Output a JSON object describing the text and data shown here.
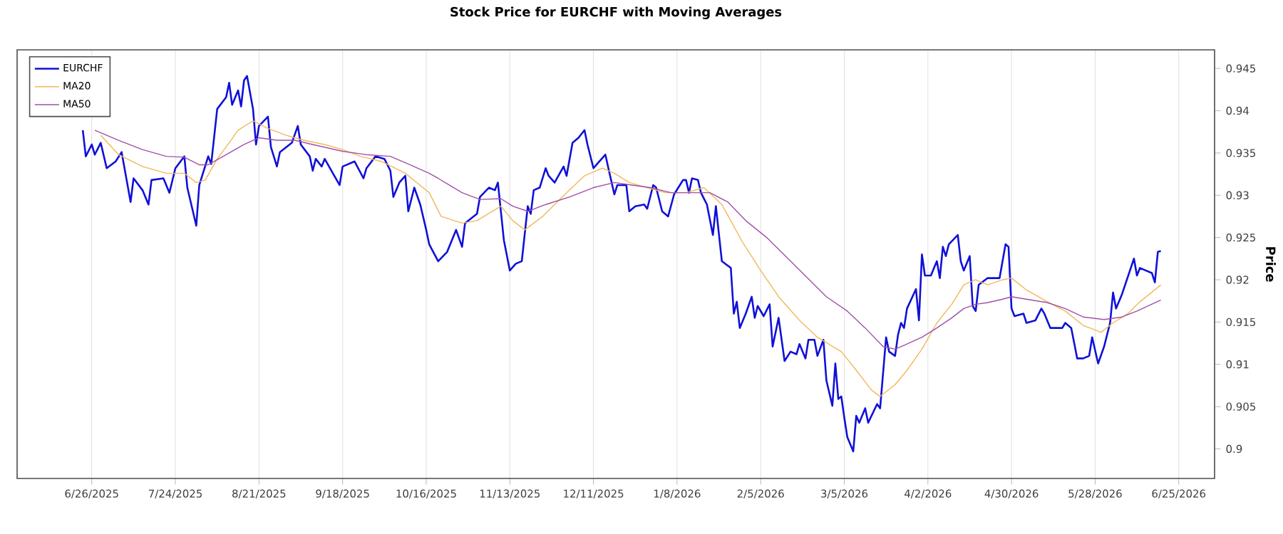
{
  "chart_data": {
    "type": "line",
    "title": "Stock Price for EURCHF with Moving Averages",
    "ylabel": "Price",
    "xlim": [
      "2025-06-01",
      "2026-07-07"
    ],
    "ylim": [
      0.8965,
      0.9472
    ],
    "xticks": [
      {
        "value": "2025-06-26",
        "label": "6/26/2025"
      },
      {
        "value": "2025-07-24",
        "label": "7/24/2025"
      },
      {
        "value": "2025-08-21",
        "label": "8/21/2025"
      },
      {
        "value": "2025-09-18",
        "label": "9/18/2025"
      },
      {
        "value": "2025-10-16",
        "label": "10/16/2025"
      },
      {
        "value": "2025-11-13",
        "label": "11/13/2025"
      },
      {
        "value": "2025-12-11",
        "label": "12/11/2025"
      },
      {
        "value": "2026-01-08",
        "label": "1/8/2026"
      },
      {
        "value": "2026-02-05",
        "label": "2/5/2026"
      },
      {
        "value": "2026-03-05",
        "label": "3/5/2026"
      },
      {
        "value": "2026-04-02",
        "label": "4/2/2026"
      },
      {
        "value": "2026-04-30",
        "label": "4/30/2026"
      },
      {
        "value": "2026-05-28",
        "label": "5/28/2026"
      },
      {
        "value": "2026-06-25",
        "label": "6/25/2026"
      }
    ],
    "yticks": [
      0.9,
      0.905,
      0.91,
      0.915,
      0.92,
      0.925,
      0.93,
      0.935,
      0.94,
      0.945
    ],
    "grid": "x",
    "legend": "top left",
    "series": [
      {
        "name": "EURCHF",
        "color": "#1010d8",
        "x": [
          "2025-06-23",
          "2025-06-24",
          "2025-06-26",
          "2025-06-27",
          "2025-06-29",
          "2025-07-01",
          "2025-07-04",
          "2025-07-06",
          "2025-07-09",
          "2025-07-10",
          "2025-07-13",
          "2025-07-15",
          "2025-07-16",
          "2025-07-20",
          "2025-07-22",
          "2025-07-24",
          "2025-07-27",
          "2025-07-28",
          "2025-07-31",
          "2025-08-01",
          "2025-08-04",
          "2025-08-05",
          "2025-08-07",
          "2025-08-10",
          "2025-08-11",
          "2025-08-12",
          "2025-08-14",
          "2025-08-15",
          "2025-08-16",
          "2025-08-17",
          "2025-08-19",
          "2025-08-20",
          "2025-08-21",
          "2025-08-24",
          "2025-08-25",
          "2025-08-27",
          "2025-08-28",
          "2025-09-01",
          "2025-09-03",
          "2025-09-04",
          "2025-09-07",
          "2025-09-08",
          "2025-09-09",
          "2025-09-11",
          "2025-09-12",
          "2025-09-17",
          "2025-09-18",
          "2025-09-22",
          "2025-09-25",
          "2025-09-26",
          "2025-09-29",
          "2025-10-02",
          "2025-10-04",
          "2025-10-05",
          "2025-10-07",
          "2025-10-09",
          "2025-10-10",
          "2025-10-12",
          "2025-10-14",
          "2025-10-16",
          "2025-10-17",
          "2025-10-20",
          "2025-10-23",
          "2025-10-26",
          "2025-10-28",
          "2025-10-29",
          "2025-11-02",
          "2025-11-03",
          "2025-11-06",
          "2025-11-08",
          "2025-11-09",
          "2025-11-11",
          "2025-11-13",
          "2025-11-15",
          "2025-11-17",
          "2025-11-19",
          "2025-11-20",
          "2025-11-21",
          "2025-11-23",
          "2025-11-25",
          "2025-11-26",
          "2025-11-28",
          "2025-12-01",
          "2025-12-02",
          "2025-12-04",
          "2025-12-06",
          "2025-12-08",
          "2025-12-09",
          "2025-12-11",
          "2025-12-15",
          "2025-12-16",
          "2025-12-18",
          "2025-12-19",
          "2025-12-22",
          "2025-12-23",
          "2025-12-25",
          "2025-12-28",
          "2025-12-29",
          "2025-12-31",
          "2026-01-01",
          "2026-01-03",
          "2026-01-05",
          "2026-01-07",
          "2026-01-10",
          "2026-01-11",
          "2026-01-12",
          "2026-01-13",
          "2026-01-15",
          "2026-01-16",
          "2026-01-18",
          "2026-01-20",
          "2026-01-21",
          "2026-01-23",
          "2026-01-26",
          "2026-01-27",
          "2026-01-28",
          "2026-01-29",
          "2026-01-31",
          "2026-02-02",
          "2026-02-03",
          "2026-02-04",
          "2026-02-06",
          "2026-02-08",
          "2026-02-09",
          "2026-02-11",
          "2026-02-13",
          "2026-02-15",
          "2026-02-17",
          "2026-02-18",
          "2026-02-20",
          "2026-02-21",
          "2026-02-23",
          "2026-02-24",
          "2026-02-26",
          "2026-02-27",
          "2026-03-01",
          "2026-03-02",
          "2026-03-03",
          "2026-03-04",
          "2026-03-05",
          "2026-03-06",
          "2026-03-08",
          "2026-03-09",
          "2026-03-10",
          "2026-03-12",
          "2026-03-13",
          "2026-03-16",
          "2026-03-17",
          "2026-03-19",
          "2026-03-20",
          "2026-03-22",
          "2026-03-23",
          "2026-03-24",
          "2026-03-25",
          "2026-03-26",
          "2026-03-29",
          "2026-03-30",
          "2026-03-31",
          "2026-04-01",
          "2026-04-03",
          "2026-04-05",
          "2026-04-06",
          "2026-04-07",
          "2026-04-08",
          "2026-04-09",
          "2026-04-12",
          "2026-04-13",
          "2026-04-14",
          "2026-04-16",
          "2026-04-17",
          "2026-04-18",
          "2026-04-19",
          "2026-04-22",
          "2026-04-26",
          "2026-04-28",
          "2026-04-29",
          "2026-04-30",
          "2026-05-01",
          "2026-05-04",
          "2026-05-05",
          "2026-05-08",
          "2026-05-10",
          "2026-05-11",
          "2026-05-13",
          "2026-05-17",
          "2026-05-18",
          "2026-05-20",
          "2026-05-22",
          "2026-05-24",
          "2026-05-26",
          "2026-05-27",
          "2026-05-29",
          "2026-05-31",
          "2026-06-02",
          "2026-06-03",
          "2026-06-04",
          "2026-06-06",
          "2026-06-10",
          "2026-06-11",
          "2026-06-12",
          "2026-06-16",
          "2026-06-17",
          "2026-06-18",
          "2026-06-19"
        ],
        "values": [
          0.9377,
          0.9346,
          0.936,
          0.9348,
          0.9362,
          0.9332,
          0.934,
          0.9351,
          0.9292,
          0.932,
          0.9306,
          0.9289,
          0.9318,
          0.932,
          0.9303,
          0.9332,
          0.9346,
          0.9309,
          0.9264,
          0.9312,
          0.9346,
          0.9337,
          0.9402,
          0.9416,
          0.9433,
          0.9407,
          0.9424,
          0.9405,
          0.9436,
          0.9441,
          0.9402,
          0.936,
          0.9382,
          0.9393,
          0.9357,
          0.9334,
          0.9351,
          0.9362,
          0.9382,
          0.936,
          0.9346,
          0.9329,
          0.9343,
          0.9334,
          0.9343,
          0.9312,
          0.9334,
          0.934,
          0.932,
          0.9332,
          0.9346,
          0.9343,
          0.9329,
          0.9298,
          0.9315,
          0.9323,
          0.9281,
          0.9309,
          0.9289,
          0.9259,
          0.9242,
          0.9222,
          0.9233,
          0.9259,
          0.9239,
          0.9267,
          0.9278,
          0.9298,
          0.9309,
          0.9306,
          0.9315,
          0.9247,
          0.9211,
          0.9219,
          0.9222,
          0.9287,
          0.9278,
          0.9306,
          0.9309,
          0.9332,
          0.9323,
          0.9315,
          0.9334,
          0.9323,
          0.9362,
          0.9368,
          0.9377,
          0.936,
          0.9332,
          0.9348,
          0.9332,
          0.9301,
          0.9312,
          0.9312,
          0.9281,
          0.9287,
          0.9289,
          0.9284,
          0.9312,
          0.9309,
          0.9281,
          0.9275,
          0.9301,
          0.9318,
          0.9318,
          0.9303,
          0.932,
          0.9318,
          0.9303,
          0.9289,
          0.9253,
          0.9287,
          0.9222,
          0.9214,
          0.916,
          0.9174,
          0.9143,
          0.916,
          0.918,
          0.9155,
          0.9169,
          0.9157,
          0.9171,
          0.9121,
          0.9155,
          0.9104,
          0.9115,
          0.9112,
          0.9124,
          0.9107,
          0.9129,
          0.9129,
          0.911,
          0.9129,
          0.9081,
          0.9051,
          0.9101,
          0.9059,
          0.9062,
          0.9037,
          0.9014,
          0.8997,
          0.9039,
          0.9031,
          0.9048,
          0.9031,
          0.9053,
          0.9048,
          0.9132,
          0.9115,
          0.911,
          0.9135,
          0.9149,
          0.9143,
          0.9166,
          0.9189,
          0.9152,
          0.923,
          0.9205,
          0.9205,
          0.9222,
          0.9202,
          0.9239,
          0.9228,
          0.9242,
          0.9253,
          0.9222,
          0.9211,
          0.9228,
          0.9169,
          0.9163,
          0.9194,
          0.9202,
          0.9202,
          0.9242,
          0.9239,
          0.9166,
          0.9157,
          0.916,
          0.9149,
          0.9152,
          0.9166,
          0.916,
          0.9143,
          0.9143,
          0.9149,
          0.9143,
          0.9107,
          0.9107,
          0.911,
          0.9132,
          0.9101,
          0.9121,
          0.9149,
          0.9185,
          0.9166,
          0.9183,
          0.9225,
          0.9205,
          0.9214,
          0.9208,
          0.9197,
          0.9233,
          0.9234
        ]
      },
      {
        "name": "MA20",
        "color": "#f2b75a",
        "x": [
          "2025-06-29",
          "2025-07-05",
          "2025-07-13",
          "2025-07-21",
          "2025-07-27",
          "2025-07-31",
          "2025-08-03",
          "2025-08-07",
          "2025-08-11",
          "2025-08-14",
          "2025-08-19",
          "2025-08-24",
          "2025-08-30",
          "2025-09-05",
          "2025-09-12",
          "2025-09-18",
          "2025-09-24",
          "2025-10-01",
          "2025-10-09",
          "2025-10-17",
          "2025-10-21",
          "2025-10-28",
          "2025-11-02",
          "2025-11-10",
          "2025-11-14",
          "2025-11-18",
          "2025-11-24",
          "2025-12-02",
          "2025-12-08",
          "2025-12-14",
          "2025-12-18",
          "2025-12-23",
          "2025-12-29",
          "2026-01-04",
          "2026-01-11",
          "2026-01-17",
          "2026-01-23",
          "2026-01-30",
          "2026-02-05",
          "2026-02-11",
          "2026-02-18",
          "2026-02-24",
          "2026-03-04",
          "2026-03-09",
          "2026-03-14",
          "2026-03-17",
          "2026-03-22",
          "2026-03-26",
          "2026-03-31",
          "2026-04-05",
          "2026-04-10",
          "2026-04-14",
          "2026-04-18",
          "2026-04-22",
          "2026-04-27",
          "2026-04-30",
          "2026-05-05",
          "2026-05-12",
          "2026-05-18",
          "2026-05-24",
          "2026-05-30",
          "2026-06-03",
          "2026-06-08",
          "2026-06-12",
          "2026-06-19"
        ],
        "values": [
          0.9371,
          0.9348,
          0.9334,
          0.9326,
          0.9326,
          0.9315,
          0.9318,
          0.9343,
          0.9362,
          0.9377,
          0.9388,
          0.9379,
          0.9371,
          0.9365,
          0.936,
          0.9354,
          0.9346,
          0.934,
          0.9326,
          0.9303,
          0.9275,
          0.9267,
          0.927,
          0.9287,
          0.927,
          0.9259,
          0.9275,
          0.9303,
          0.9323,
          0.9332,
          0.9326,
          0.9315,
          0.9309,
          0.9303,
          0.9303,
          0.9309,
          0.9289,
          0.9244,
          0.9211,
          0.918,
          0.9152,
          0.9132,
          0.9115,
          0.9093,
          0.907,
          0.9062,
          0.9076,
          0.9093,
          0.9118,
          0.9149,
          0.9171,
          0.9194,
          0.92,
          0.9194,
          0.92,
          0.9202,
          0.9188,
          0.9174,
          0.9163,
          0.9146,
          0.9138,
          0.9149,
          0.916,
          0.9174,
          0.9194
        ]
      },
      {
        "name": "MA50",
        "color": "#a050a8",
        "x": [
          "2025-06-27",
          "2025-07-05",
          "2025-07-13",
          "2025-07-21",
          "2025-07-27",
          "2025-08-01",
          "2025-08-04",
          "2025-08-09",
          "2025-08-16",
          "2025-08-21",
          "2025-08-27",
          "2025-09-02",
          "2025-09-08",
          "2025-09-18",
          "2025-09-26",
          "2025-10-04",
          "2025-10-10",
          "2025-10-17",
          "2025-10-20",
          "2025-10-28",
          "2025-11-03",
          "2025-11-10",
          "2025-11-14",
          "2025-11-19",
          "2025-11-25",
          "2025-12-03",
          "2025-12-11",
          "2025-12-18",
          "2025-12-24",
          "2025-12-30",
          "2026-01-06",
          "2026-01-12",
          "2026-01-19",
          "2026-01-25",
          "2026-01-31",
          "2026-02-07",
          "2026-02-15",
          "2026-02-23",
          "2026-02-27",
          "2026-03-06",
          "2026-03-12",
          "2026-03-18",
          "2026-03-22",
          "2026-03-26",
          "2026-03-31",
          "2026-04-05",
          "2026-04-10",
          "2026-04-14",
          "2026-04-18",
          "2026-04-22",
          "2026-04-27",
          "2026-04-30",
          "2026-05-05",
          "2026-05-12",
          "2026-05-18",
          "2026-05-24",
          "2026-05-31",
          "2026-06-06",
          "2026-06-11",
          "2026-06-19"
        ],
        "values": [
          0.9377,
          0.9365,
          0.9354,
          0.9346,
          0.9345,
          0.9336,
          0.9336,
          0.9346,
          0.936,
          0.9368,
          0.9365,
          0.9365,
          0.936,
          0.9352,
          0.9348,
          0.9346,
          0.9337,
          0.9326,
          0.932,
          0.9303,
          0.9295,
          0.9296,
          0.9287,
          0.9281,
          0.9289,
          0.9298,
          0.9309,
          0.9315,
          0.9312,
          0.9309,
          0.9303,
          0.9303,
          0.9303,
          0.9292,
          0.927,
          0.925,
          0.9222,
          0.9194,
          0.918,
          0.9163,
          0.9143,
          0.9121,
          0.9118,
          0.9124,
          0.9132,
          0.9143,
          0.9155,
          0.9166,
          0.9171,
          0.9173,
          0.9177,
          0.918,
          0.9177,
          0.9173,
          0.9166,
          0.9156,
          0.9153,
          0.9156,
          0.9163,
          0.9176
        ]
      }
    ]
  }
}
